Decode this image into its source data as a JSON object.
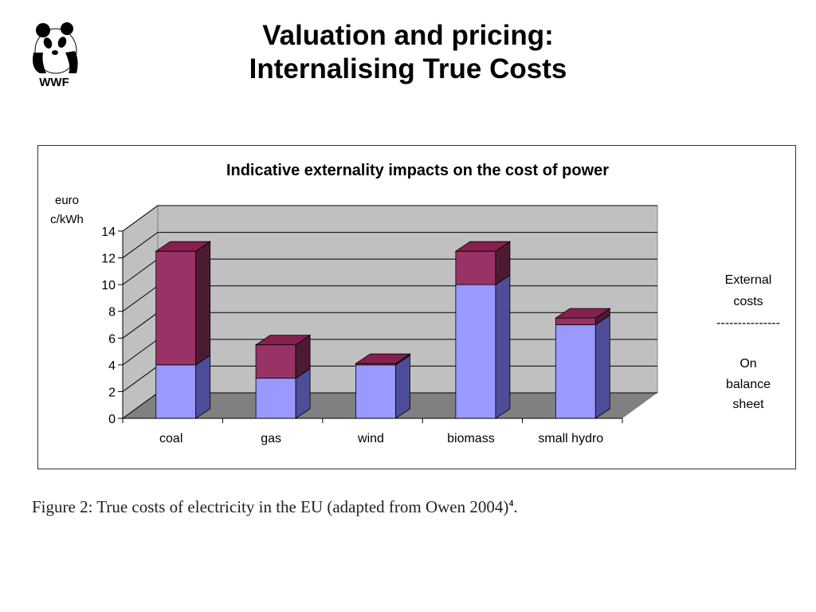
{
  "slide": {
    "title_line1": "Valuation and pricing:",
    "title_line2": "Internalising True Costs"
  },
  "logo": {
    "text": "WWF",
    "icon": "panda-icon"
  },
  "caption": {
    "text": "Figure 2:  True costs of electricity in the EU (adapted from Owen 2004)",
    "sup": "4",
    "suffix": "."
  },
  "chart_data": {
    "type": "bar",
    "stacked": true,
    "three_d": true,
    "title": "Indicative externality impacts on the cost of power",
    "ylabel_line1": "euro",
    "ylabel_line2": "c/kWh",
    "ylim": [
      0,
      14
    ],
    "yticks": [
      0,
      2,
      4,
      6,
      8,
      10,
      12,
      14
    ],
    "grid": true,
    "categories": [
      "coal",
      "gas",
      "wind",
      "biomass",
      "small hydro"
    ],
    "series": [
      {
        "name": "On balance sheet",
        "values": [
          4.0,
          3.0,
          4.0,
          10.0,
          7.0
        ],
        "color": "#9999ff"
      },
      {
        "name": "External costs",
        "values": [
          8.5,
          2.5,
          0.1,
          2.5,
          0.5
        ],
        "color": "#993366"
      }
    ],
    "legend": {
      "placement": "right",
      "top_line1": "External",
      "top_line2": "costs",
      "separator": "---------------",
      "bottom_line1": "On",
      "bottom_line2": "balance",
      "bottom_line3": "sheet"
    },
    "colors": {
      "wall": "#c0c0c0",
      "floor": "#808080",
      "front_dark": "#4d4d99",
      "top_dark": "#b3b3ff",
      "ext_side": "#4d1a33",
      "ext_top": "#86204f"
    }
  }
}
